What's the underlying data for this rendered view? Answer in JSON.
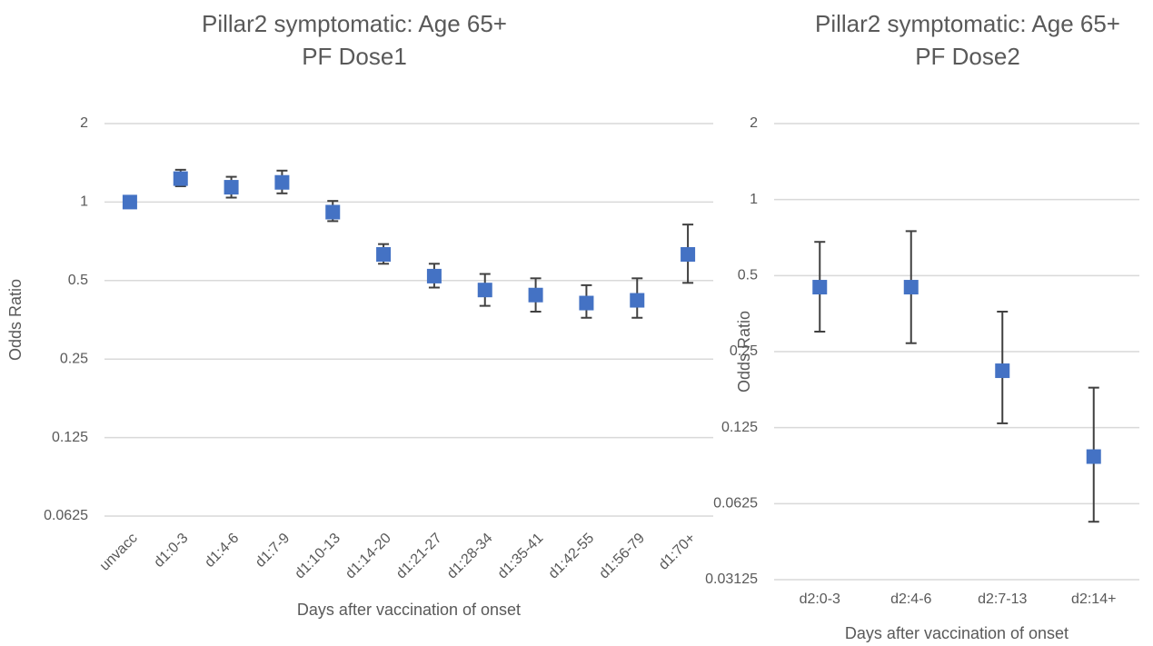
{
  "chart_data": [
    {
      "type": "errorbar",
      "title": "Pillar2 symptomatic: Age 65+",
      "subtitle": "PF Dose1",
      "x_label": "Days after vaccination of onset",
      "y_label": "Odds Ratio",
      "categories": [
        "unvacc",
        "d1:0-3",
        "d1:4-6",
        "d1:7-9",
        "d1:10-13",
        "d1:14-20",
        "d1:21-27",
        "d1:28-34",
        "d1:35-41",
        "d1:42-55",
        "d1:56-79",
        "d1:70+"
      ],
      "series": [
        {
          "name": "Odds Ratio",
          "color": "#4472c4",
          "values": [
            1,
            1.23,
            1.14,
            1.19,
            0.915,
            0.63,
            0.52,
            0.46,
            0.44,
            0.41,
            0.42,
            0.63
          ],
          "lower": [
            1,
            1.15,
            1.04,
            1.08,
            0.845,
            0.58,
            0.47,
            0.4,
            0.38,
            0.36,
            0.36,
            0.49
          ],
          "upper": [
            1,
            1.33,
            1.25,
            1.32,
            1.01,
            0.69,
            0.58,
            0.53,
            0.51,
            0.48,
            0.51,
            0.82
          ]
        }
      ],
      "ylim": [
        0.0625,
        2
      ],
      "yticks": [
        0.0625,
        0.125,
        0.25,
        0.5,
        1,
        2
      ],
      "log_scale": true,
      "grid": true,
      "rotate_x_labels": true
    },
    {
      "type": "errorbar",
      "title": "Pillar2 symptomatic: Age 65+",
      "subtitle": "PF Dose2",
      "x_label": "Days after vaccination of onset",
      "y_label": "Odds Ratio",
      "categories": [
        "d2:0-3",
        "d2:4-6",
        "d2:7-13",
        "d2:14+"
      ],
      "series": [
        {
          "name": "Odds Ratio",
          "color": "#4472c4",
          "values": [
            0.45,
            0.45,
            0.21,
            0.096
          ],
          "lower": [
            0.3,
            0.27,
            0.13,
            0.053
          ],
          "upper": [
            0.68,
            0.75,
            0.36,
            0.18
          ]
        }
      ],
      "ylim": [
        0.03125,
        2
      ],
      "yticks": [
        0.03125,
        0.0625,
        0.125,
        0.25,
        0.5,
        1,
        2
      ],
      "log_scale": true,
      "grid": true,
      "rotate_x_labels": false
    }
  ]
}
